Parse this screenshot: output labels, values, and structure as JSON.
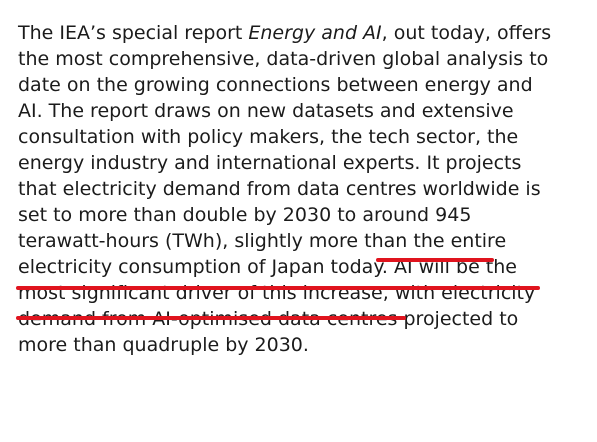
{
  "paragraph": {
    "l1a": "The IEA’s special report ",
    "l1b": "Energy and AI",
    "l1c": ", out today, offers",
    "l2": "the most comprehensive, data-driven global analysis to",
    "l3": "date on the growing connections between energy and",
    "l4": "AI. The report draws on new datasets and extensive",
    "l5": "consultation with policy makers, the tech sector, the",
    "l6": "energy industry and international experts. It projects",
    "l7": "that electricity demand from data centres worldwide is",
    "l8a": "set to more than double by 2030 to ",
    "l8b": "around 945",
    "l9": "terawatt-hours (TWh), slightly more than the entire",
    "l10a": "electricity consumption of Japan today.",
    "l10b": " AI will be the",
    "l11": "most significant driver of this increase, with electricity",
    "l12": "demand from AI-optimised data centres projected to",
    "l13": "more than quadruple by 2030."
  },
  "accent_color": "#e0141e"
}
